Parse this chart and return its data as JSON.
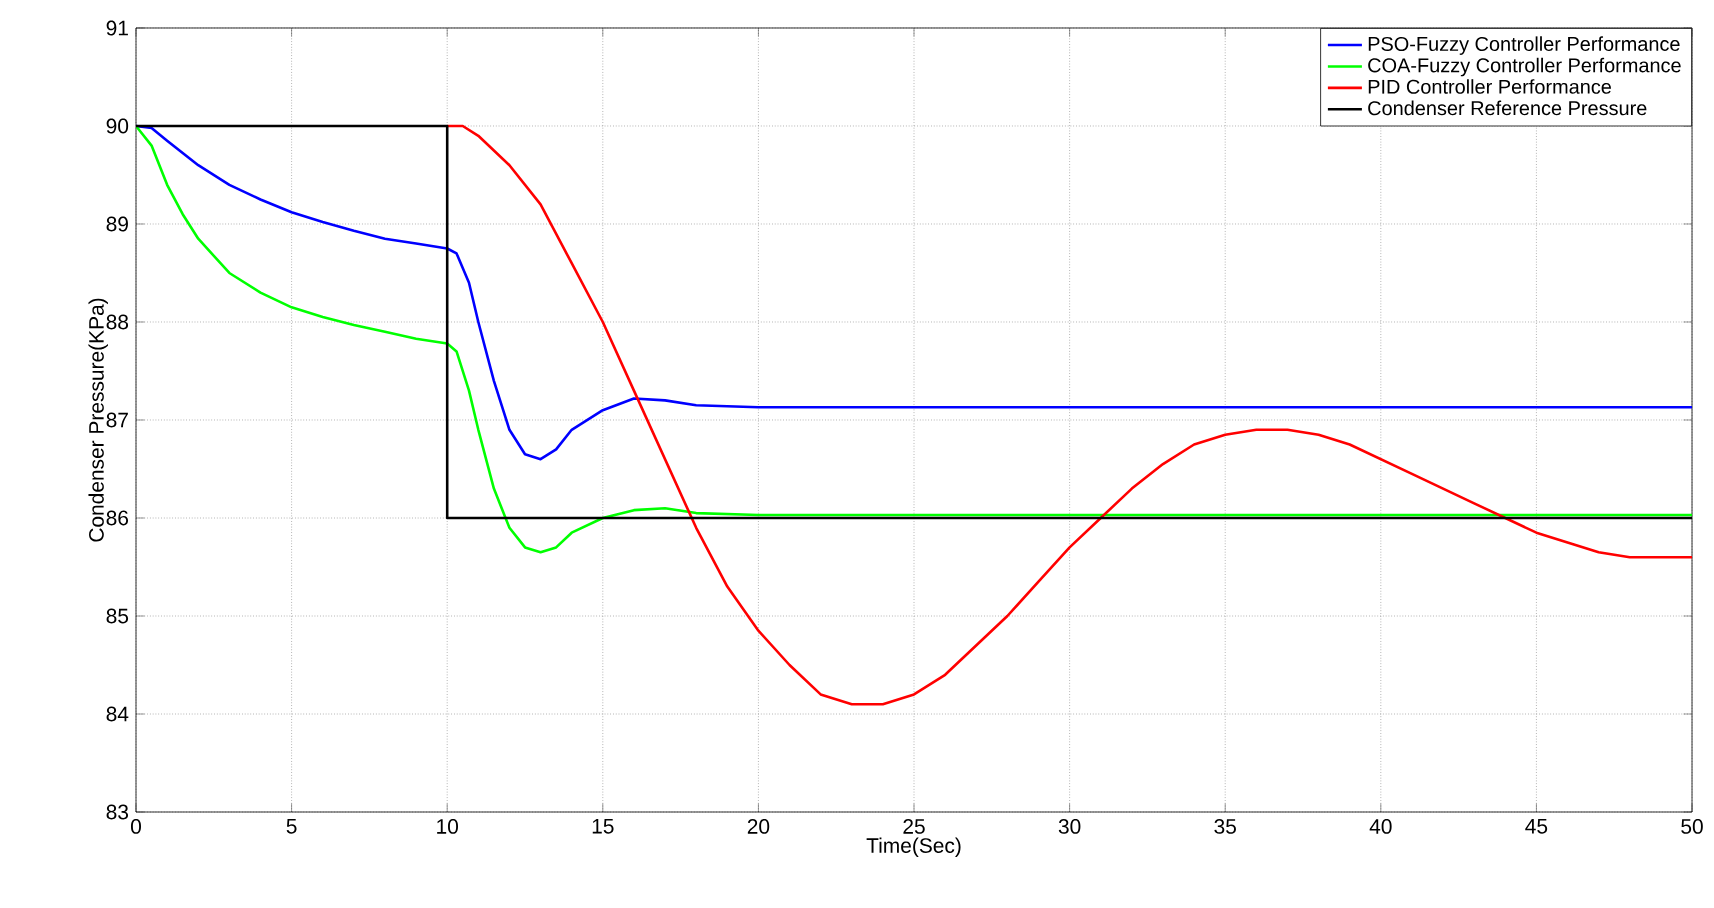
{
  "chart_data": {
    "type": "line",
    "xlabel": "Time(Sec)",
    "ylabel": "Condenser Pressure(KPa)",
    "xlim": [
      0,
      50
    ],
    "ylim": [
      83,
      91
    ],
    "xticks": [
      0,
      5,
      10,
      15,
      20,
      25,
      30,
      35,
      40,
      45,
      50
    ],
    "yticks": [
      83,
      84,
      85,
      86,
      87,
      88,
      89,
      90,
      91
    ],
    "grid": true,
    "legend": "top right",
    "marker": "none",
    "line_style": "solid",
    "series": [
      {
        "name": "PSO-Fuzzy Controller Performance",
        "color": "#0000ff",
        "x": [
          0,
          0.5,
          1,
          2,
          3,
          4,
          5,
          6,
          7,
          8,
          9,
          10,
          10.3,
          10.7,
          11,
          11.5,
          12,
          12.5,
          13,
          13.5,
          14,
          15,
          16,
          17,
          18,
          20,
          50
        ],
        "values": [
          90,
          89.98,
          89.85,
          89.6,
          89.4,
          89.25,
          89.12,
          89.02,
          88.93,
          88.85,
          88.8,
          88.75,
          88.7,
          88.4,
          88,
          87.4,
          86.9,
          86.65,
          86.6,
          86.7,
          86.9,
          87.1,
          87.22,
          87.2,
          87.15,
          87.13,
          87.13
        ]
      },
      {
        "name": "COA-Fuzzy Controller Performance",
        "color": "#00ff00",
        "x": [
          0,
          0.5,
          1,
          1.5,
          2,
          3,
          4,
          5,
          6,
          7,
          8,
          9,
          10,
          10.3,
          10.7,
          11,
          11.5,
          12,
          12.5,
          13,
          13.5,
          14,
          15,
          16,
          17,
          18,
          20,
          50
        ],
        "values": [
          90,
          89.8,
          89.4,
          89.1,
          88.85,
          88.5,
          88.3,
          88.15,
          88.05,
          87.97,
          87.9,
          87.83,
          87.78,
          87.7,
          87.3,
          86.9,
          86.3,
          85.9,
          85.7,
          85.65,
          85.7,
          85.85,
          86,
          86.08,
          86.1,
          86.05,
          86.03,
          86.03
        ]
      },
      {
        "name": "PID Controller Performance",
        "color": "#ff0000",
        "x": [
          10,
          10.5,
          11,
          12,
          13,
          14,
          15,
          16,
          17,
          18,
          19,
          20,
          21,
          22,
          23,
          24,
          25,
          26,
          27,
          28,
          29,
          30,
          31,
          32,
          33,
          34,
          35,
          36,
          37,
          38,
          39,
          40,
          41,
          42,
          43,
          44,
          45,
          46,
          47,
          48,
          50
        ],
        "values": [
          90,
          90,
          89.9,
          89.6,
          89.2,
          88.6,
          88,
          87.3,
          86.6,
          85.9,
          85.3,
          84.85,
          84.5,
          84.2,
          84.1,
          84.1,
          84.2,
          84.4,
          84.7,
          85,
          85.35,
          85.7,
          86,
          86.3,
          86.55,
          86.75,
          86.85,
          86.9,
          86.9,
          86.85,
          86.75,
          86.6,
          86.45,
          86.3,
          86.15,
          86,
          85.85,
          85.75,
          85.65,
          85.6,
          85.6
        ]
      },
      {
        "name": "Condenser Reference Pressure",
        "color": "#000000",
        "x": [
          0,
          10,
          10,
          50
        ],
        "values": [
          90,
          90,
          86,
          86
        ]
      }
    ]
  }
}
